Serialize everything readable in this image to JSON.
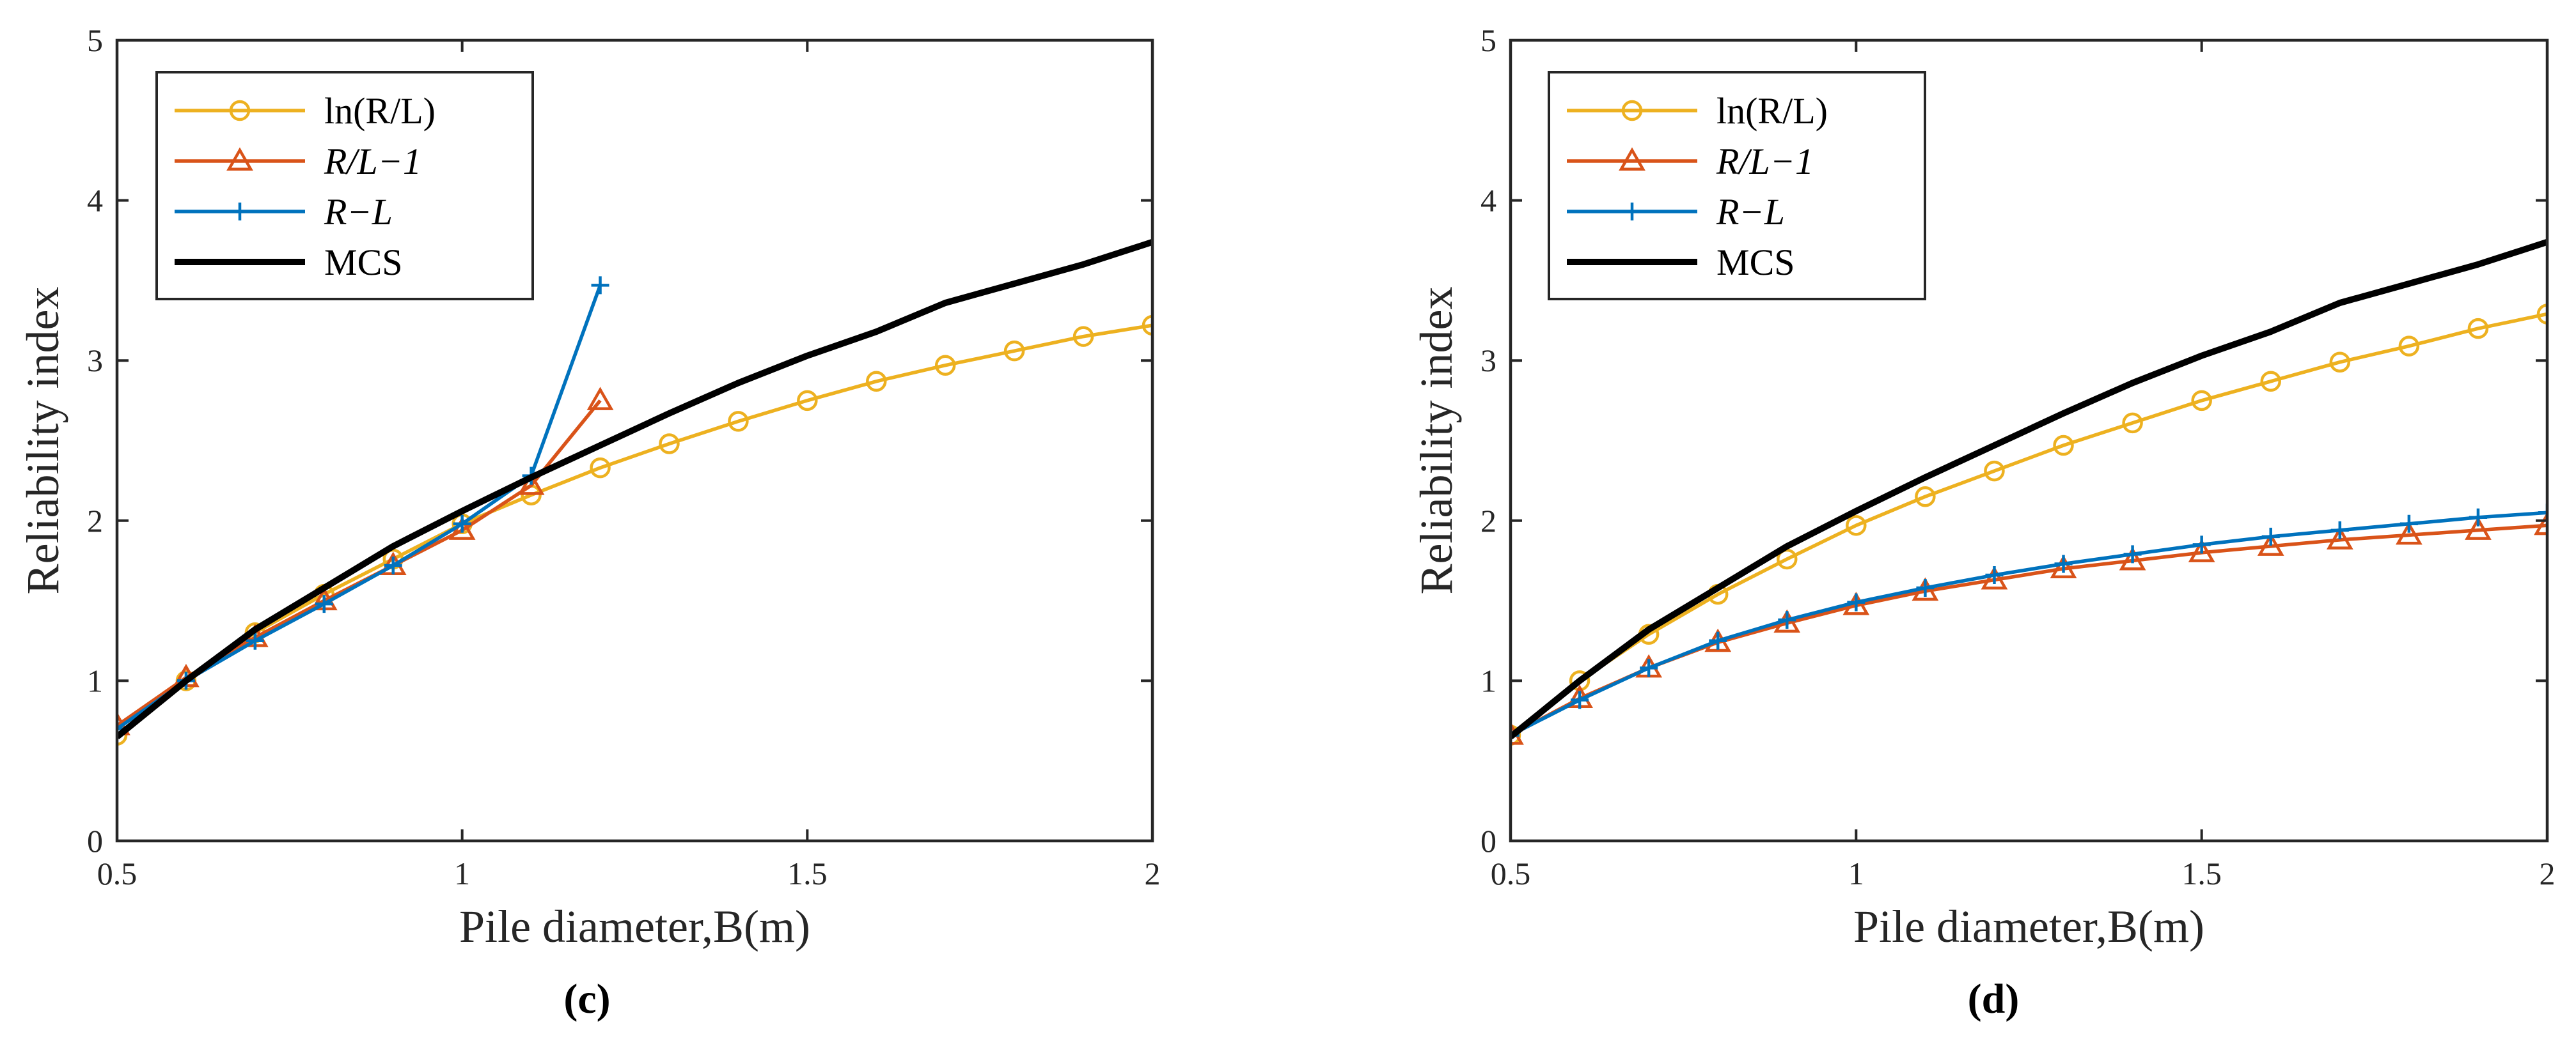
{
  "colors": {
    "ln": "#EDB120",
    "ratio": "#D95319",
    "diff": "#0072BD",
    "mcs": "#000000",
    "axis": "#262626"
  },
  "chart_data": [
    {
      "id": "c",
      "panel_label": "(c)",
      "type": "line",
      "xlabel": "Pile diameter,B(m)",
      "ylabel": "Reliability index",
      "xlim": [
        0.5,
        2
      ],
      "ylim": [
        0,
        5
      ],
      "xticks": [
        "0.5",
        "1",
        "1.5",
        "2"
      ],
      "yticks": [
        "0",
        "1",
        "2",
        "3",
        "4",
        "5"
      ],
      "legend_position": "top-left",
      "series": [
        {
          "key": "ln",
          "name": "ln(R/L)",
          "marker": "circle",
          "x": [
            0.5,
            0.6,
            0.7,
            0.8,
            0.9,
            1.0,
            1.1,
            1.2,
            1.3,
            1.4,
            1.5,
            1.6,
            1.7,
            1.8,
            1.9,
            2.0
          ],
          "y": [
            0.66,
            1.0,
            1.3,
            1.54,
            1.76,
            1.98,
            2.16,
            2.33,
            2.48,
            2.62,
            2.75,
            2.87,
            2.97,
            3.06,
            3.15,
            3.22
          ]
        },
        {
          "key": "ratio",
          "name": "R/L−1",
          "marker": "triangle",
          "x": [
            0.5,
            0.6,
            0.7,
            0.8,
            0.9,
            1.0,
            1.1,
            1.2
          ],
          "y": [
            0.72,
            1.02,
            1.27,
            1.5,
            1.72,
            1.94,
            2.22,
            2.75
          ]
        },
        {
          "key": "diff",
          "name": "R−L",
          "marker": "plus",
          "x": [
            0.5,
            0.6,
            0.7,
            0.8,
            0.9,
            1.0,
            1.1,
            1.2
          ],
          "y": [
            0.7,
            1.0,
            1.25,
            1.48,
            1.72,
            1.98,
            2.28,
            3.47
          ]
        },
        {
          "key": "mcs",
          "name": "MCS",
          "marker": "none",
          "x": [
            0.5,
            0.6,
            0.7,
            0.8,
            0.9,
            1.0,
            1.1,
            1.2,
            1.3,
            1.4,
            1.5,
            1.6,
            1.7,
            1.8,
            1.9,
            2.0
          ],
          "y": [
            0.65,
            1.0,
            1.32,
            1.58,
            1.84,
            2.06,
            2.27,
            2.47,
            2.67,
            2.86,
            3.03,
            3.18,
            3.36,
            3.48,
            3.6,
            3.74
          ]
        }
      ]
    },
    {
      "id": "d",
      "panel_label": "(d)",
      "type": "line",
      "xlabel": "Pile diameter,B(m)",
      "ylabel": "Reliability index",
      "xlim": [
        0.5,
        2
      ],
      "ylim": [
        0,
        5
      ],
      "xticks": [
        "0.5",
        "1",
        "1.5",
        "2"
      ],
      "yticks": [
        "0",
        "1",
        "2",
        "3",
        "4",
        "5"
      ],
      "legend_position": "top-left",
      "series": [
        {
          "key": "ln",
          "name": "ln(R/L)",
          "marker": "circle",
          "x": [
            0.5,
            0.6,
            0.7,
            0.8,
            0.9,
            1.0,
            1.1,
            1.2,
            1.3,
            1.4,
            1.5,
            1.6,
            1.7,
            1.8,
            1.9,
            2.0
          ],
          "y": [
            0.66,
            1.0,
            1.29,
            1.54,
            1.76,
            1.97,
            2.15,
            2.31,
            2.47,
            2.61,
            2.75,
            2.87,
            2.99,
            3.09,
            3.2,
            3.29
          ]
        },
        {
          "key": "ratio",
          "name": "R/L−1",
          "marker": "triangle",
          "x": [
            0.5,
            0.6,
            0.7,
            0.8,
            0.9,
            1.0,
            1.1,
            1.2,
            1.3,
            1.4,
            1.5,
            1.6,
            1.7,
            1.8,
            1.9,
            2.0
          ],
          "y": [
            0.66,
            0.89,
            1.08,
            1.24,
            1.36,
            1.47,
            1.56,
            1.63,
            1.7,
            1.75,
            1.8,
            1.84,
            1.88,
            1.91,
            1.94,
            1.97
          ]
        },
        {
          "key": "diff",
          "name": "R−L",
          "marker": "plus",
          "x": [
            0.5,
            0.6,
            0.7,
            0.8,
            0.9,
            1.0,
            1.1,
            1.2,
            1.3,
            1.4,
            1.5,
            1.6,
            1.7,
            1.8,
            1.9,
            2.0
          ],
          "y": [
            0.66,
            0.88,
            1.08,
            1.25,
            1.38,
            1.49,
            1.58,
            1.66,
            1.73,
            1.79,
            1.85,
            1.9,
            1.94,
            1.98,
            2.02,
            2.05
          ]
        },
        {
          "key": "mcs",
          "name": "MCS",
          "marker": "none",
          "x": [
            0.5,
            0.6,
            0.7,
            0.8,
            0.9,
            1.0,
            1.1,
            1.2,
            1.3,
            1.4,
            1.5,
            1.6,
            1.7,
            1.8,
            1.9,
            2.0
          ],
          "y": [
            0.65,
            1.0,
            1.32,
            1.58,
            1.84,
            2.06,
            2.27,
            2.47,
            2.67,
            2.86,
            3.03,
            3.18,
            3.36,
            3.48,
            3.6,
            3.74
          ]
        }
      ]
    }
  ]
}
